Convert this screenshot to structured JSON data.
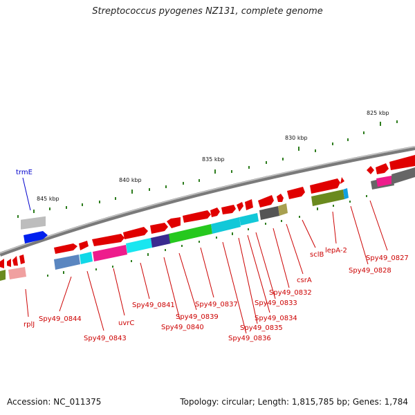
{
  "title": "Streptococcus pyogenes NZ131, complete genome",
  "footer": {
    "accession": "Accession: NC_011375",
    "topology": "Topology: circular; Length: 1,815,785 bp; Genes: 1,784"
  },
  "colors": {
    "backbone": "#8a8a8a",
    "tick": "#2e7d1e",
    "label_red": "#cc0000",
    "label_blue": "#0000cc"
  },
  "scale_labels": [
    "845 kbp",
    "840 kbp",
    "835 kbp",
    "830 kbp",
    "825 kbp"
  ],
  "gene_labels": [
    {
      "text": "trmE",
      "color": "blue"
    },
    {
      "text": "rplJ",
      "color": "red"
    },
    {
      "text": "Spy49_0844",
      "color": "red"
    },
    {
      "text": "Spy49_0843",
      "color": "red"
    },
    {
      "text": "uvrC",
      "color": "red"
    },
    {
      "text": "Spy49_0841",
      "color": "red"
    },
    {
      "text": "Spy49_0840",
      "color": "red"
    },
    {
      "text": "Spy49_0839",
      "color": "red"
    },
    {
      "text": "Spy49_0837",
      "color": "red"
    },
    {
      "text": "Spy49_0836",
      "color": "red"
    },
    {
      "text": "Spy49_0835",
      "color": "red"
    },
    {
      "text": "Spy49_0834",
      "color": "red"
    },
    {
      "text": "Spy49_0833",
      "color": "red"
    },
    {
      "text": "Spy49_0832",
      "color": "red"
    },
    {
      "text": "csrA",
      "color": "red"
    },
    {
      "text": "sclB",
      "color": "red"
    },
    {
      "text": "lepA-2",
      "color": "red"
    },
    {
      "text": "Spy49_0828",
      "color": "red"
    },
    {
      "text": "Spy49_0827",
      "color": "red"
    }
  ]
}
